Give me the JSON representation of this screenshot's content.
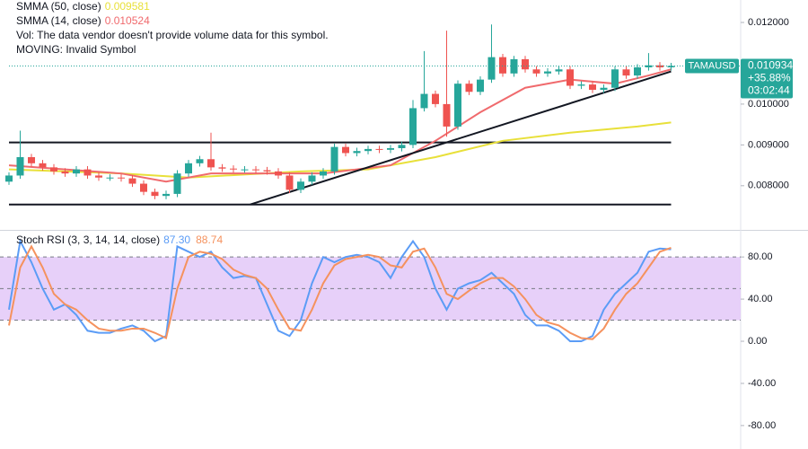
{
  "chart_data": [
    {
      "type": "candlestick",
      "symbol": "TAMAUSD",
      "last_price": 0.010934,
      "change": "+35.88%",
      "countdown": "03:02:44",
      "annotations": [
        "Vol: The data vendor doesn't provide volume data for this symbol.",
        "MOVING: Invalid Symbol"
      ],
      "up_color": "#26a69a",
      "down_color": "#ef5350",
      "open": [
        0.0081,
        0.00825,
        0.0087,
        0.00855,
        0.00845,
        0.00835,
        0.0083,
        0.0084,
        0.00825,
        0.0082,
        0.0082,
        0.00818,
        0.00805,
        0.00785,
        0.00775,
        0.0078,
        0.0083,
        0.00855,
        0.00865,
        0.00845,
        0.00842,
        0.0084,
        0.0084,
        0.00838,
        0.00835,
        0.00825,
        0.0079,
        0.0081,
        0.00825,
        0.00835,
        0.00895,
        0.0088,
        0.00885,
        0.0089,
        0.00888,
        0.00892,
        0.009,
        0.0099,
        0.01025,
        0.01,
        0.00945,
        0.0105,
        0.0103,
        0.0106,
        0.01115,
        0.01075,
        0.0111,
        0.01085,
        0.01075,
        0.0108,
        0.01085,
        0.01045,
        0.01048,
        0.01035,
        0.0104,
        0.01085,
        0.0107,
        0.0109,
        0.01095,
        0.0109
      ],
      "high": [
        0.00833,
        0.00935,
        0.00878,
        0.00863,
        0.00853,
        0.00843,
        0.00848,
        0.00848,
        0.00833,
        0.00828,
        0.00828,
        0.00826,
        0.00813,
        0.00793,
        0.00788,
        0.00838,
        0.00863,
        0.00873,
        0.0093,
        0.00853,
        0.0085,
        0.00848,
        0.00848,
        0.00846,
        0.00843,
        0.00833,
        0.00818,
        0.00833,
        0.00843,
        0.00903,
        0.00903,
        0.00893,
        0.00898,
        0.00898,
        0.009,
        0.00908,
        0.0101,
        0.0113,
        0.01033,
        0.0118,
        0.01058,
        0.01058,
        0.01068,
        0.01195,
        0.01123,
        0.01118,
        0.01118,
        0.01093,
        0.01088,
        0.01093,
        0.01093,
        0.01056,
        0.01056,
        0.01048,
        0.01093,
        0.01093,
        0.01098,
        0.01125,
        0.01103,
        0.01101
      ],
      "low": [
        0.00802,
        0.00817,
        0.00847,
        0.00837,
        0.00827,
        0.00822,
        0.00822,
        0.00817,
        0.00812,
        0.00812,
        0.0081,
        0.00797,
        0.00777,
        0.00767,
        0.00767,
        0.00772,
        0.00822,
        0.00847,
        0.00837,
        0.00834,
        0.00832,
        0.00832,
        0.0083,
        0.00827,
        0.00817,
        0.00782,
        0.00782,
        0.00802,
        0.00817,
        0.00827,
        0.00872,
        0.00872,
        0.00877,
        0.0088,
        0.0088,
        0.00884,
        0.00892,
        0.00982,
        0.00992,
        0.0092,
        0.00937,
        0.01022,
        0.01022,
        0.01052,
        0.01067,
        0.01067,
        0.01077,
        0.01067,
        0.01067,
        0.01072,
        0.01037,
        0.01037,
        0.01027,
        0.01027,
        0.01032,
        0.01062,
        0.01062,
        0.01082,
        0.01082,
        0.01082
      ],
      "close": [
        0.00825,
        0.0087,
        0.00855,
        0.00845,
        0.00835,
        0.0083,
        0.0084,
        0.00825,
        0.0082,
        0.0082,
        0.00818,
        0.00805,
        0.00785,
        0.00775,
        0.0078,
        0.0083,
        0.00855,
        0.00865,
        0.00845,
        0.00842,
        0.0084,
        0.0084,
        0.00838,
        0.00835,
        0.00825,
        0.0079,
        0.0081,
        0.00825,
        0.00835,
        0.00895,
        0.0088,
        0.00885,
        0.0089,
        0.00888,
        0.00892,
        0.009,
        0.0099,
        0.01025,
        0.01,
        0.00945,
        0.0105,
        0.0103,
        0.0106,
        0.01115,
        0.01075,
        0.0111,
        0.01085,
        0.01075,
        0.0108,
        0.01085,
        0.01045,
        0.01048,
        0.01035,
        0.0104,
        0.01085,
        0.0107,
        0.0109,
        0.01095,
        0.0109,
        0.010934
      ],
      "series": [
        {
          "name": "SMMA (50, close)",
          "color": "#e8e03a",
          "legend_value": 0.009581,
          "x": [
            0,
            10,
            16,
            26,
            32,
            38,
            44,
            50,
            56,
            59
          ],
          "values": [
            0.0084,
            0.0083,
            0.0082,
            0.00835,
            0.0084,
            0.0087,
            0.0091,
            0.0093,
            0.00945,
            0.00955
          ]
        },
        {
          "name": "SMMA (14, close)",
          "color": "#f06a6d",
          "legend_value": 0.010524,
          "x": [
            0,
            10,
            14,
            18,
            28,
            34,
            38,
            42,
            46,
            50,
            54,
            57,
            59
          ],
          "values": [
            0.0085,
            0.0083,
            0.0081,
            0.0083,
            0.0083,
            0.0085,
            0.0091,
            0.0098,
            0.0104,
            0.0106,
            0.0105,
            0.0107,
            0.01085
          ]
        }
      ],
      "hlines": [
        0.00906,
        0.00754
      ],
      "trendline": {
        "x": [
          21.5,
          59
        ],
        "y": [
          0.00754,
          0.0108
        ]
      },
      "ylim": [
        0.00694,
        0.01255
      ],
      "yticks": [
        {
          "value": 0.008,
          "label": "0.008000"
        },
        {
          "value": 0.009,
          "label": "0.009000"
        },
        {
          "value": 0.01,
          "label": "0.010000"
        },
        {
          "value": 0.012,
          "label": "0.012000"
        }
      ]
    },
    {
      "type": "line",
      "title": "Stoch RSI (3, 3, 14, 14, close)",
      "band": [
        20,
        80
      ],
      "midline": 50,
      "band_color": "#e1c4f7",
      "series": [
        {
          "color": "#5b9cf6",
          "legend_value": {
            "value": 87.3,
            "label": "87.30"
          },
          "values": [
            30,
            95,
            75,
            50,
            30,
            35,
            25,
            10,
            8,
            8,
            12,
            15,
            10,
            0,
            5,
            90,
            85,
            80,
            85,
            70,
            60,
            62,
            60,
            35,
            10,
            5,
            20,
            55,
            80,
            75,
            80,
            82,
            80,
            75,
            60,
            80,
            95,
            80,
            50,
            30,
            50,
            55,
            58,
            65,
            55,
            45,
            25,
            15,
            15,
            10,
            0,
            0,
            5,
            30,
            45,
            55,
            65,
            85,
            88,
            87.3
          ]
        },
        {
          "color": "#f5925e",
          "legend_value": {
            "value": 88.74,
            "label": "88.74"
          },
          "values": [
            15,
            70,
            90,
            70,
            45,
            35,
            30,
            20,
            12,
            10,
            10,
            12,
            12,
            8,
            3,
            50,
            80,
            85,
            83,
            78,
            68,
            63,
            60,
            50,
            30,
            12,
            10,
            30,
            55,
            72,
            78,
            80,
            82,
            80,
            72,
            70,
            85,
            88,
            70,
            45,
            40,
            48,
            55,
            60,
            60,
            52,
            40,
            25,
            18,
            15,
            8,
            3,
            2,
            12,
            30,
            45,
            55,
            70,
            85,
            88.74
          ]
        }
      ],
      "ylim": [
        -98,
        104
      ],
      "yticks": [
        {
          "value": 80,
          "label": "80.00"
        },
        {
          "value": 40,
          "label": "40.00"
        },
        {
          "value": 0,
          "label": "0.00"
        },
        {
          "value": -40,
          "label": "-40.00"
        },
        {
          "value": -80,
          "label": "-80.00"
        }
      ]
    }
  ]
}
